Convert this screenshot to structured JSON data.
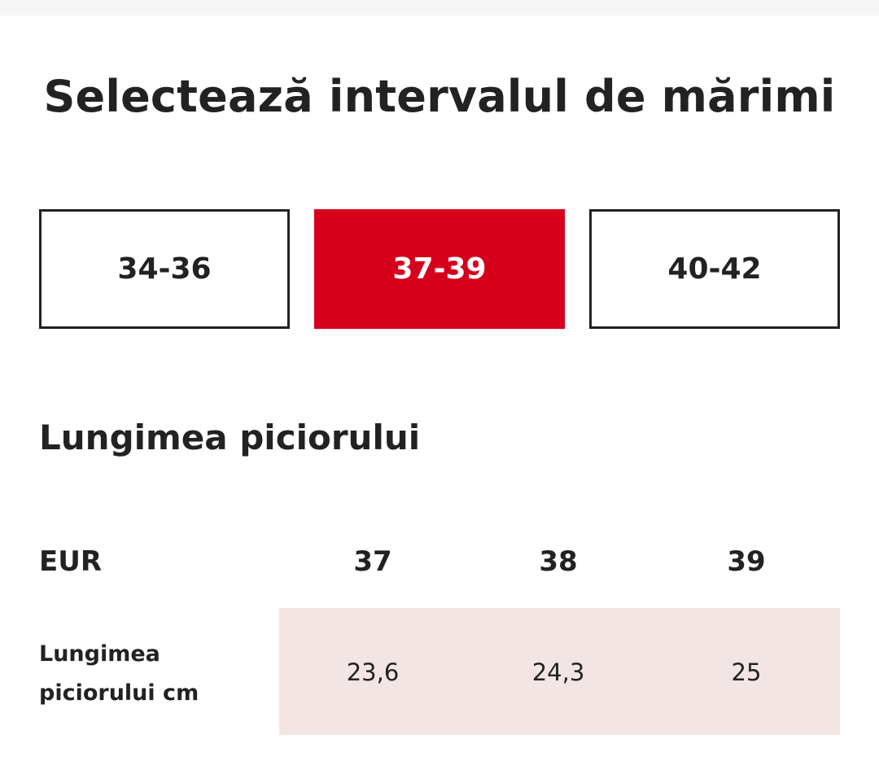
{
  "title": "Selectează intervalul de mărimi",
  "colors": {
    "accent": "#d6001c",
    "row_highlight": "#f3e5e4",
    "text": "#222222",
    "active_text": "#ffffff"
  },
  "size_ranges": {
    "items": [
      {
        "label": "34-36",
        "selected": false
      },
      {
        "label": "37-39",
        "selected": true
      },
      {
        "label": "40-42",
        "selected": false
      }
    ]
  },
  "section": {
    "title": "Lungimea piciorului"
  },
  "table": {
    "header_label": "EUR",
    "sizes": [
      "37",
      "38",
      "39"
    ],
    "row_label": "Lungimea piciorului cm",
    "values": [
      "23,6",
      "24,3",
      "25"
    ]
  }
}
